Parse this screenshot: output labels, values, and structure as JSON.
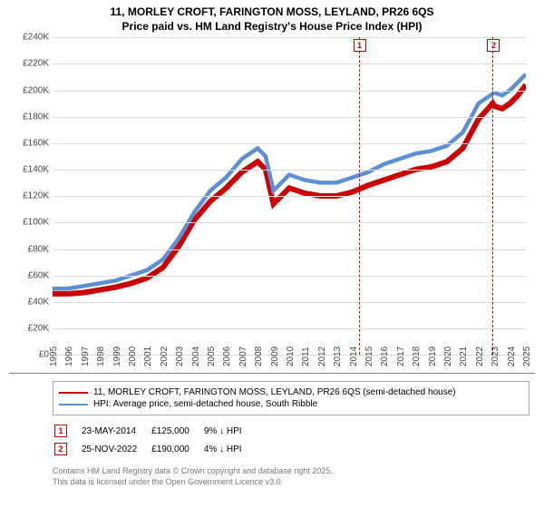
{
  "title_line1": "11, MORLEY CROFT, FARINGTON MOSS, LEYLAND, PR26 6QS",
  "title_line2": "Price paid vs. HM Land Registry's House Price Index (HPI)",
  "chart": {
    "type": "line",
    "background_color": "#ffffff",
    "grid_color": "#dddddd",
    "axis_color": "#888888",
    "label_fontsize": 10,
    "xlim": [
      1995,
      2025
    ],
    "ylim": [
      0,
      240000
    ],
    "ytick_step": 20000,
    "yticks": [
      "£0",
      "£20K",
      "£40K",
      "£60K",
      "£80K",
      "£100K",
      "£120K",
      "£140K",
      "£160K",
      "£180K",
      "£200K",
      "£220K",
      "£240K"
    ],
    "xticks": [
      1995,
      1996,
      1997,
      1998,
      1999,
      2000,
      2001,
      2002,
      2003,
      2004,
      2005,
      2006,
      2007,
      2008,
      2009,
      2010,
      2011,
      2012,
      2013,
      2014,
      2015,
      2016,
      2017,
      2018,
      2019,
      2020,
      2021,
      2022,
      2023,
      2024,
      2025
    ],
    "series": [
      {
        "name": "price_paid",
        "label": "11, MORLEY CROFT, FARINGTON MOSS, LEYLAND, PR26 6QS (semi-detached house)",
        "color": "#cc0000",
        "line_width": 2,
        "data": [
          [
            1995,
            46000
          ],
          [
            1996,
            46000
          ],
          [
            1997,
            47000
          ],
          [
            1998,
            49000
          ],
          [
            1999,
            51000
          ],
          [
            2000,
            54000
          ],
          [
            2001,
            58000
          ],
          [
            2002,
            66000
          ],
          [
            2003,
            82000
          ],
          [
            2004,
            102000
          ],
          [
            2005,
            116000
          ],
          [
            2006,
            126000
          ],
          [
            2007,
            138000
          ],
          [
            2008,
            146000
          ],
          [
            2008.5,
            140000
          ],
          [
            2009,
            114000
          ],
          [
            2009.5,
            120000
          ],
          [
            2010,
            126000
          ],
          [
            2011,
            122000
          ],
          [
            2012,
            120000
          ],
          [
            2013,
            120000
          ],
          [
            2014,
            123000
          ],
          [
            2014.4,
            125000
          ],
          [
            2015,
            128000
          ],
          [
            2016,
            132000
          ],
          [
            2017,
            136000
          ],
          [
            2018,
            140000
          ],
          [
            2019,
            142000
          ],
          [
            2020,
            146000
          ],
          [
            2021,
            156000
          ],
          [
            2022,
            178000
          ],
          [
            2022.9,
            190000
          ],
          [
            2023,
            188000
          ],
          [
            2023.5,
            186000
          ],
          [
            2024,
            190000
          ],
          [
            2024.5,
            196000
          ],
          [
            2025,
            204000
          ]
        ]
      },
      {
        "name": "hpi",
        "label": "HPI: Average price, semi-detached house, South Ribble",
        "color": "#5b8fd6",
        "line_width": 1.5,
        "data": [
          [
            1995,
            50000
          ],
          [
            1996,
            50000
          ],
          [
            1997,
            52000
          ],
          [
            1998,
            54000
          ],
          [
            1999,
            56000
          ],
          [
            2000,
            60000
          ],
          [
            2001,
            64000
          ],
          [
            2002,
            72000
          ],
          [
            2003,
            88000
          ],
          [
            2004,
            108000
          ],
          [
            2005,
            124000
          ],
          [
            2006,
            134000
          ],
          [
            2007,
            148000
          ],
          [
            2008,
            156000
          ],
          [
            2008.5,
            150000
          ],
          [
            2009,
            124000
          ],
          [
            2009.5,
            130000
          ],
          [
            2010,
            136000
          ],
          [
            2011,
            132000
          ],
          [
            2012,
            130000
          ],
          [
            2013,
            130000
          ],
          [
            2014,
            134000
          ],
          [
            2015,
            138000
          ],
          [
            2016,
            144000
          ],
          [
            2017,
            148000
          ],
          [
            2018,
            152000
          ],
          [
            2019,
            154000
          ],
          [
            2020,
            158000
          ],
          [
            2021,
            168000
          ],
          [
            2022,
            190000
          ],
          [
            2023,
            198000
          ],
          [
            2023.5,
            196000
          ],
          [
            2024,
            200000
          ],
          [
            2024.5,
            206000
          ],
          [
            2025,
            212000
          ]
        ]
      }
    ],
    "markers": [
      {
        "id": "1",
        "x": 2014.4,
        "y": 125000,
        "color": "#cc0000",
        "date": "23-MAY-2014",
        "price": "£125,000",
        "delta": "9% ↓ HPI"
      },
      {
        "id": "2",
        "x": 2022.9,
        "y": 190000,
        "color": "#cc0000",
        "date": "25-NOV-2022",
        "price": "£190,000",
        "delta": "4% ↓ HPI"
      }
    ]
  },
  "footer_line1": "Contains HM Land Registry data © Crown copyright and database right 2025.",
  "footer_line2": "This data is licensed under the Open Government Licence v3.0."
}
